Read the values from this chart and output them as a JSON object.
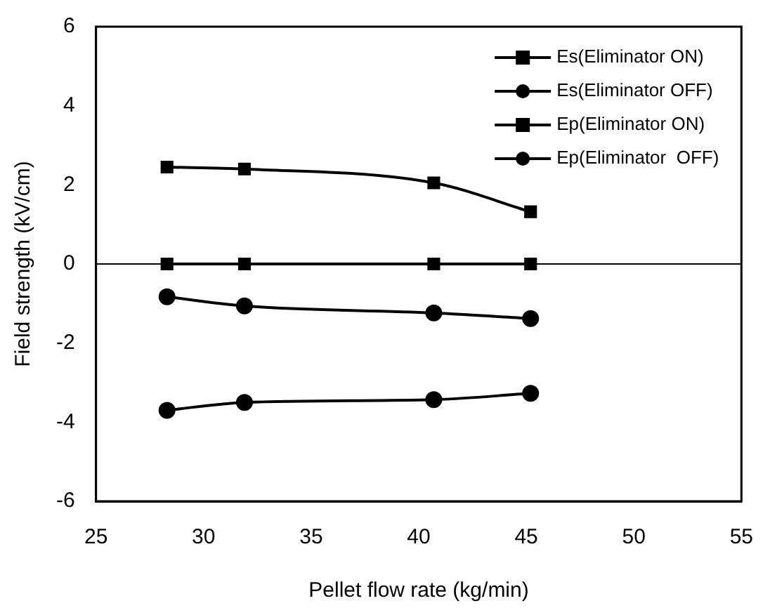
{
  "chart_data": {
    "type": "line",
    "xlabel": "Pellet flow rate (kg/min)",
    "ylabel": "Field strength (kV/cm)",
    "x": [
      28.3,
      31.9,
      40.7,
      45.2
    ],
    "series": [
      {
        "name": "Es(Eliminator ON)",
        "color": "#000000",
        "marker": "square",
        "values": [
          2.45,
          2.4,
          2.05,
          1.32
        ]
      },
      {
        "name": "Es(Eliminator OFF)",
        "color": "#000000",
        "marker": "circle",
        "values": [
          -3.7,
          -3.5,
          -3.43,
          -3.27
        ]
      },
      {
        "name": "Ep(Eliminator ON)",
        "color": "#000000",
        "marker": "square",
        "values": [
          0,
          0,
          0,
          0
        ]
      },
      {
        "name": "Ep(Eliminator  OFF)",
        "color": "#000000",
        "marker": "circle",
        "values": [
          -0.83,
          -1.06,
          -1.24,
          -1.38
        ]
      }
    ],
    "xlim": [
      25,
      55
    ],
    "xticks": [
      25,
      30,
      35,
      40,
      45,
      50,
      55
    ],
    "ylim": [
      -6,
      6
    ],
    "yticks": [
      -6,
      -4,
      -2,
      0,
      2,
      4,
      6
    ],
    "ref_lines": [
      {
        "axis": "y",
        "value": 0,
        "color": "#000000"
      }
    ],
    "legend": "top right",
    "grid": false
  }
}
